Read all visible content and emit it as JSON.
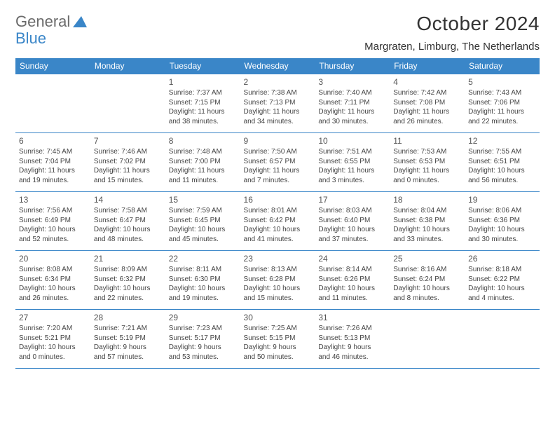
{
  "logo": {
    "text1": "General",
    "text2": "Blue"
  },
  "title": "October 2024",
  "location": "Margraten, Limburg, The Netherlands",
  "colors": {
    "accent": "#3a86c8",
    "text": "#333333",
    "header_bg": "#3a86c8",
    "header_fg": "#ffffff"
  },
  "weekdays": [
    "Sunday",
    "Monday",
    "Tuesday",
    "Wednesday",
    "Thursday",
    "Friday",
    "Saturday"
  ],
  "weeks": [
    [
      null,
      null,
      {
        "n": "1",
        "sr": "Sunrise: 7:37 AM",
        "ss": "Sunset: 7:15 PM",
        "d1": "Daylight: 11 hours",
        "d2": "and 38 minutes."
      },
      {
        "n": "2",
        "sr": "Sunrise: 7:38 AM",
        "ss": "Sunset: 7:13 PM",
        "d1": "Daylight: 11 hours",
        "d2": "and 34 minutes."
      },
      {
        "n": "3",
        "sr": "Sunrise: 7:40 AM",
        "ss": "Sunset: 7:11 PM",
        "d1": "Daylight: 11 hours",
        "d2": "and 30 minutes."
      },
      {
        "n": "4",
        "sr": "Sunrise: 7:42 AM",
        "ss": "Sunset: 7:08 PM",
        "d1": "Daylight: 11 hours",
        "d2": "and 26 minutes."
      },
      {
        "n": "5",
        "sr": "Sunrise: 7:43 AM",
        "ss": "Sunset: 7:06 PM",
        "d1": "Daylight: 11 hours",
        "d2": "and 22 minutes."
      }
    ],
    [
      {
        "n": "6",
        "sr": "Sunrise: 7:45 AM",
        "ss": "Sunset: 7:04 PM",
        "d1": "Daylight: 11 hours",
        "d2": "and 19 minutes."
      },
      {
        "n": "7",
        "sr": "Sunrise: 7:46 AM",
        "ss": "Sunset: 7:02 PM",
        "d1": "Daylight: 11 hours",
        "d2": "and 15 minutes."
      },
      {
        "n": "8",
        "sr": "Sunrise: 7:48 AM",
        "ss": "Sunset: 7:00 PM",
        "d1": "Daylight: 11 hours",
        "d2": "and 11 minutes."
      },
      {
        "n": "9",
        "sr": "Sunrise: 7:50 AM",
        "ss": "Sunset: 6:57 PM",
        "d1": "Daylight: 11 hours",
        "d2": "and 7 minutes."
      },
      {
        "n": "10",
        "sr": "Sunrise: 7:51 AM",
        "ss": "Sunset: 6:55 PM",
        "d1": "Daylight: 11 hours",
        "d2": "and 3 minutes."
      },
      {
        "n": "11",
        "sr": "Sunrise: 7:53 AM",
        "ss": "Sunset: 6:53 PM",
        "d1": "Daylight: 11 hours",
        "d2": "and 0 minutes."
      },
      {
        "n": "12",
        "sr": "Sunrise: 7:55 AM",
        "ss": "Sunset: 6:51 PM",
        "d1": "Daylight: 10 hours",
        "d2": "and 56 minutes."
      }
    ],
    [
      {
        "n": "13",
        "sr": "Sunrise: 7:56 AM",
        "ss": "Sunset: 6:49 PM",
        "d1": "Daylight: 10 hours",
        "d2": "and 52 minutes."
      },
      {
        "n": "14",
        "sr": "Sunrise: 7:58 AM",
        "ss": "Sunset: 6:47 PM",
        "d1": "Daylight: 10 hours",
        "d2": "and 48 minutes."
      },
      {
        "n": "15",
        "sr": "Sunrise: 7:59 AM",
        "ss": "Sunset: 6:45 PM",
        "d1": "Daylight: 10 hours",
        "d2": "and 45 minutes."
      },
      {
        "n": "16",
        "sr": "Sunrise: 8:01 AM",
        "ss": "Sunset: 6:42 PM",
        "d1": "Daylight: 10 hours",
        "d2": "and 41 minutes."
      },
      {
        "n": "17",
        "sr": "Sunrise: 8:03 AM",
        "ss": "Sunset: 6:40 PM",
        "d1": "Daylight: 10 hours",
        "d2": "and 37 minutes."
      },
      {
        "n": "18",
        "sr": "Sunrise: 8:04 AM",
        "ss": "Sunset: 6:38 PM",
        "d1": "Daylight: 10 hours",
        "d2": "and 33 minutes."
      },
      {
        "n": "19",
        "sr": "Sunrise: 8:06 AM",
        "ss": "Sunset: 6:36 PM",
        "d1": "Daylight: 10 hours",
        "d2": "and 30 minutes."
      }
    ],
    [
      {
        "n": "20",
        "sr": "Sunrise: 8:08 AM",
        "ss": "Sunset: 6:34 PM",
        "d1": "Daylight: 10 hours",
        "d2": "and 26 minutes."
      },
      {
        "n": "21",
        "sr": "Sunrise: 8:09 AM",
        "ss": "Sunset: 6:32 PM",
        "d1": "Daylight: 10 hours",
        "d2": "and 22 minutes."
      },
      {
        "n": "22",
        "sr": "Sunrise: 8:11 AM",
        "ss": "Sunset: 6:30 PM",
        "d1": "Daylight: 10 hours",
        "d2": "and 19 minutes."
      },
      {
        "n": "23",
        "sr": "Sunrise: 8:13 AM",
        "ss": "Sunset: 6:28 PM",
        "d1": "Daylight: 10 hours",
        "d2": "and 15 minutes."
      },
      {
        "n": "24",
        "sr": "Sunrise: 8:14 AM",
        "ss": "Sunset: 6:26 PM",
        "d1": "Daylight: 10 hours",
        "d2": "and 11 minutes."
      },
      {
        "n": "25",
        "sr": "Sunrise: 8:16 AM",
        "ss": "Sunset: 6:24 PM",
        "d1": "Daylight: 10 hours",
        "d2": "and 8 minutes."
      },
      {
        "n": "26",
        "sr": "Sunrise: 8:18 AM",
        "ss": "Sunset: 6:22 PM",
        "d1": "Daylight: 10 hours",
        "d2": "and 4 minutes."
      }
    ],
    [
      {
        "n": "27",
        "sr": "Sunrise: 7:20 AM",
        "ss": "Sunset: 5:21 PM",
        "d1": "Daylight: 10 hours",
        "d2": "and 0 minutes."
      },
      {
        "n": "28",
        "sr": "Sunrise: 7:21 AM",
        "ss": "Sunset: 5:19 PM",
        "d1": "Daylight: 9 hours",
        "d2": "and 57 minutes."
      },
      {
        "n": "29",
        "sr": "Sunrise: 7:23 AM",
        "ss": "Sunset: 5:17 PM",
        "d1": "Daylight: 9 hours",
        "d2": "and 53 minutes."
      },
      {
        "n": "30",
        "sr": "Sunrise: 7:25 AM",
        "ss": "Sunset: 5:15 PM",
        "d1": "Daylight: 9 hours",
        "d2": "and 50 minutes."
      },
      {
        "n": "31",
        "sr": "Sunrise: 7:26 AM",
        "ss": "Sunset: 5:13 PM",
        "d1": "Daylight: 9 hours",
        "d2": "and 46 minutes."
      },
      null,
      null
    ]
  ]
}
